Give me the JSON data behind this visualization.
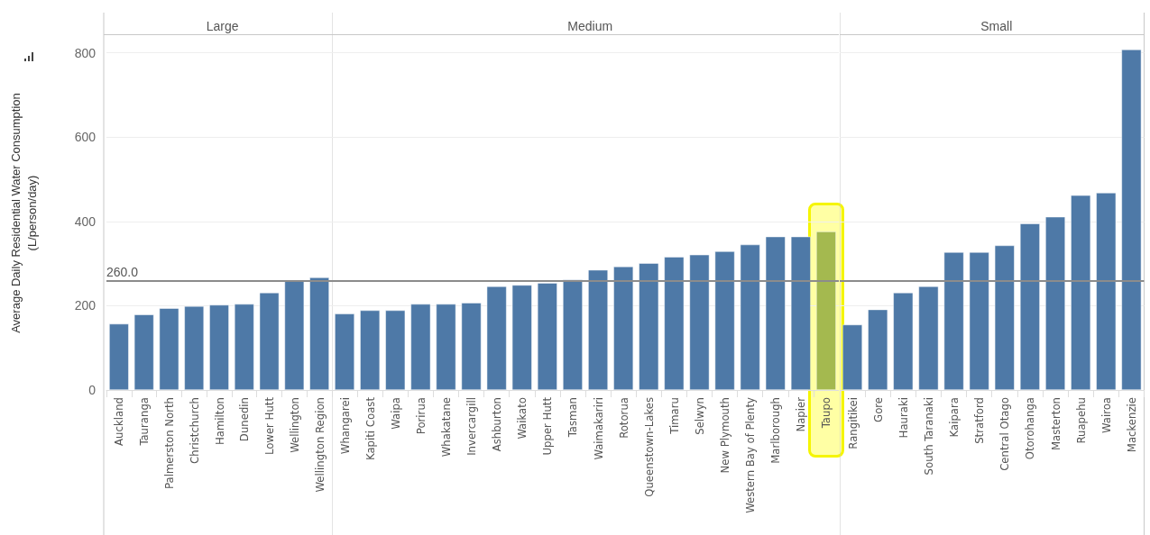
{
  "chart_data": [
    {
      "type": "bar",
      "title": "Large",
      "ylabel": "Average Daily Residential Water Consumption\n(L/person/day)",
      "categories": [
        "Auckland",
        "Tauranga",
        "Palmerston North",
        "Christchurch",
        "Hamilton",
        "Dunedin",
        "Lower Hutt",
        "Wellington",
        "Wellington Region"
      ],
      "values": [
        157,
        179,
        194,
        199,
        202,
        204,
        231,
        259,
        267
      ],
      "color": "#4e79a7",
      "ylim": [
        0,
        840
      ],
      "yticks": [
        0,
        200,
        400,
        600,
        800
      ],
      "grid": "y",
      "ref_lines": [
        {
          "axis": "y",
          "value": 260,
          "label": "260.0",
          "color": "#8c8c8c"
        }
      ]
    },
    {
      "type": "bar",
      "title": "Medium",
      "categories": [
        "Whangarei",
        "Kapiti Coast",
        "Waipa",
        "Porirua",
        "Whakatane",
        "Invercargill",
        "Ashburton",
        "Waikato",
        "Upper Hutt",
        "Tasman",
        "Waimakariri",
        "Rotorua",
        "Queenstown-Lakes",
        "Timaru",
        "Selwyn",
        "New Plymouth",
        "Western Bay of Plenty",
        "Marlborough",
        "Napier",
        "Taupo"
      ],
      "values": [
        181,
        189,
        189,
        204,
        204,
        207,
        246,
        249,
        254,
        262,
        285,
        293,
        301,
        316,
        321,
        329,
        345,
        364,
        364,
        376
      ],
      "colors": [
        "#4e79a7",
        "#4e79a7",
        "#4e79a7",
        "#4e79a7",
        "#4e79a7",
        "#4e79a7",
        "#4e79a7",
        "#4e79a7",
        "#4e79a7",
        "#4e79a7",
        "#4e79a7",
        "#4e79a7",
        "#4e79a7",
        "#4e79a7",
        "#4e79a7",
        "#4e79a7",
        "#4e79a7",
        "#4e79a7",
        "#4e79a7",
        "#a4b94f"
      ],
      "ylim": [
        0,
        840
      ],
      "yticks": [
        0,
        200,
        400,
        600,
        800
      ],
      "grid": "y",
      "tick_labels": "x",
      "ref_lines": [
        {
          "axis": "y",
          "value": 260,
          "label": null,
          "color": "#8c8c8c"
        }
      ]
    },
    {
      "type": "bar",
      "title": "Small",
      "categories": [
        "Rangitikei",
        "Gore",
        "Hauraki",
        "South Taranaki",
        "Kaipara",
        "Stratford",
        "Central Otago",
        "Otorohanga",
        "Masterton",
        "Ruapehu",
        "Wairoa",
        "Mackenzie"
      ],
      "values": [
        155,
        191,
        231,
        246,
        327,
        327,
        343,
        395,
        411,
        462,
        468,
        808
      ],
      "color": "#4e79a7",
      "ylim": [
        0,
        840
      ],
      "yticks": [
        0,
        200,
        400,
        600,
        800
      ],
      "grid": "y",
      "tick_labels": "x",
      "ref_lines": [
        {
          "axis": "y",
          "value": 260,
          "label": null,
          "color": "#8c8c8c"
        }
      ]
    }
  ]
}
